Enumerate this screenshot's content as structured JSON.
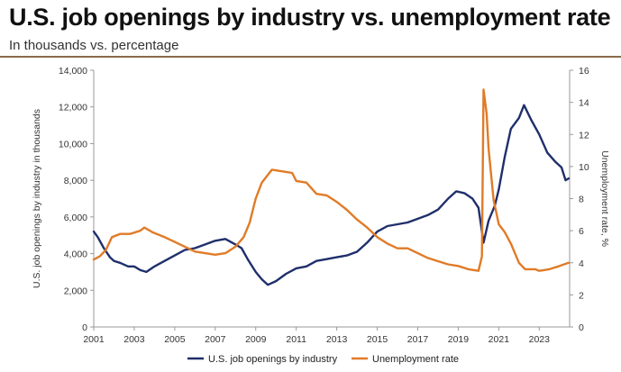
{
  "header": {
    "title": "U.S. job openings by industry vs. unemployment rate",
    "subtitle": "In thousands vs. percentage"
  },
  "chart_data": {
    "type": "line",
    "xlim": [
      2001,
      2024.5
    ],
    "x_ticks": [
      "2001",
      "2003",
      "2005",
      "2007",
      "2009",
      "2011",
      "2013",
      "2015",
      "2017",
      "2019",
      "2021",
      "2023"
    ],
    "x_tick_values": [
      2001,
      2003,
      2005,
      2007,
      2009,
      2011,
      2013,
      2015,
      2017,
      2019,
      2021,
      2023
    ],
    "y_left": {
      "label": "U.S. job openings by industry in thousands",
      "lim": [
        0,
        14000
      ],
      "ticks": [
        "0",
        "2,000",
        "4,000",
        "6,000",
        "8,000",
        "10,000",
        "12,000",
        "14,000"
      ],
      "tick_values": [
        0,
        2000,
        4000,
        6000,
        8000,
        10000,
        12000,
        14000
      ]
    },
    "y_right": {
      "label": "Unemployment rate, %",
      "lim": [
        0,
        16
      ],
      "ticks": [
        "0",
        "2",
        "4",
        "6",
        "8",
        "10",
        "12",
        "14",
        "16"
      ],
      "tick_values": [
        0,
        2,
        4,
        6,
        8,
        10,
        12,
        14,
        16
      ]
    },
    "legend_position": "bottom",
    "series": [
      {
        "name": "U.S. job openings by industry",
        "axis": "left",
        "color": "#1f2f6b",
        "points": [
          [
            2001.0,
            5200
          ],
          [
            2001.2,
            4900
          ],
          [
            2001.5,
            4300
          ],
          [
            2001.8,
            3800
          ],
          [
            2002.0,
            3600
          ],
          [
            2002.3,
            3500
          ],
          [
            2002.7,
            3300
          ],
          [
            2003.0,
            3300
          ],
          [
            2003.3,
            3100
          ],
          [
            2003.6,
            3000
          ],
          [
            2004.0,
            3300
          ],
          [
            2004.5,
            3600
          ],
          [
            2005.0,
            3900
          ],
          [
            2005.5,
            4200
          ],
          [
            2006.0,
            4300
          ],
          [
            2006.5,
            4500
          ],
          [
            2007.0,
            4700
          ],
          [
            2007.5,
            4800
          ],
          [
            2008.0,
            4500
          ],
          [
            2008.3,
            4300
          ],
          [
            2008.6,
            3700
          ],
          [
            2009.0,
            3000
          ],
          [
            2009.3,
            2600
          ],
          [
            2009.6,
            2300
          ],
          [
            2010.0,
            2500
          ],
          [
            2010.5,
            2900
          ],
          [
            2011.0,
            3200
          ],
          [
            2011.5,
            3300
          ],
          [
            2012.0,
            3600
          ],
          [
            2012.5,
            3700
          ],
          [
            2013.0,
            3800
          ],
          [
            2013.5,
            3900
          ],
          [
            2014.0,
            4100
          ],
          [
            2014.5,
            4600
          ],
          [
            2015.0,
            5200
          ],
          [
            2015.5,
            5500
          ],
          [
            2016.0,
            5600
          ],
          [
            2016.5,
            5700
          ],
          [
            2017.0,
            5900
          ],
          [
            2017.5,
            6100
          ],
          [
            2018.0,
            6400
          ],
          [
            2018.5,
            7000
          ],
          [
            2018.9,
            7400
          ],
          [
            2019.3,
            7300
          ],
          [
            2019.7,
            7000
          ],
          [
            2020.0,
            6500
          ],
          [
            2020.25,
            4600
          ],
          [
            2020.5,
            5800
          ],
          [
            2020.8,
            6600
          ],
          [
            2021.0,
            7500
          ],
          [
            2021.3,
            9300
          ],
          [
            2021.6,
            10800
          ],
          [
            2022.0,
            11400
          ],
          [
            2022.25,
            12100
          ],
          [
            2022.6,
            11300
          ],
          [
            2023.0,
            10500
          ],
          [
            2023.4,
            9500
          ],
          [
            2023.8,
            9000
          ],
          [
            2024.1,
            8700
          ],
          [
            2024.3,
            8000
          ],
          [
            2024.45,
            8100
          ]
        ]
      },
      {
        "name": "Unemployment rate",
        "axis": "right",
        "color": "#e07b27",
        "points": [
          [
            2001.0,
            4.2
          ],
          [
            2001.3,
            4.4
          ],
          [
            2001.6,
            4.8
          ],
          [
            2001.9,
            5.6
          ],
          [
            2002.3,
            5.8
          ],
          [
            2002.8,
            5.8
          ],
          [
            2003.3,
            6.0
          ],
          [
            2003.5,
            6.2
          ],
          [
            2003.9,
            5.9
          ],
          [
            2004.5,
            5.6
          ],
          [
            2005.0,
            5.3
          ],
          [
            2005.5,
            5.0
          ],
          [
            2006.0,
            4.7
          ],
          [
            2006.5,
            4.6
          ],
          [
            2007.0,
            4.5
          ],
          [
            2007.5,
            4.6
          ],
          [
            2008.0,
            5.0
          ],
          [
            2008.4,
            5.6
          ],
          [
            2008.7,
            6.5
          ],
          [
            2009.0,
            8.0
          ],
          [
            2009.3,
            9.0
          ],
          [
            2009.8,
            9.8
          ],
          [
            2010.3,
            9.7
          ],
          [
            2010.8,
            9.6
          ],
          [
            2011.0,
            9.1
          ],
          [
            2011.5,
            9.0
          ],
          [
            2012.0,
            8.3
          ],
          [
            2012.5,
            8.2
          ],
          [
            2013.0,
            7.8
          ],
          [
            2013.5,
            7.3
          ],
          [
            2014.0,
            6.7
          ],
          [
            2014.5,
            6.2
          ],
          [
            2015.0,
            5.6
          ],
          [
            2015.5,
            5.2
          ],
          [
            2016.0,
            4.9
          ],
          [
            2016.5,
            4.9
          ],
          [
            2017.0,
            4.6
          ],
          [
            2017.5,
            4.3
          ],
          [
            2018.0,
            4.1
          ],
          [
            2018.5,
            3.9
          ],
          [
            2019.0,
            3.8
          ],
          [
            2019.5,
            3.6
          ],
          [
            2020.0,
            3.5
          ],
          [
            2020.17,
            4.4
          ],
          [
            2020.25,
            14.8
          ],
          [
            2020.4,
            13.3
          ],
          [
            2020.5,
            11.1
          ],
          [
            2020.75,
            7.9
          ],
          [
            2021.0,
            6.4
          ],
          [
            2021.3,
            5.9
          ],
          [
            2021.6,
            5.2
          ],
          [
            2022.0,
            4.0
          ],
          [
            2022.3,
            3.6
          ],
          [
            2022.8,
            3.6
          ],
          [
            2023.0,
            3.5
          ],
          [
            2023.5,
            3.6
          ],
          [
            2024.0,
            3.8
          ],
          [
            2024.45,
            4.0
          ]
        ]
      }
    ]
  }
}
